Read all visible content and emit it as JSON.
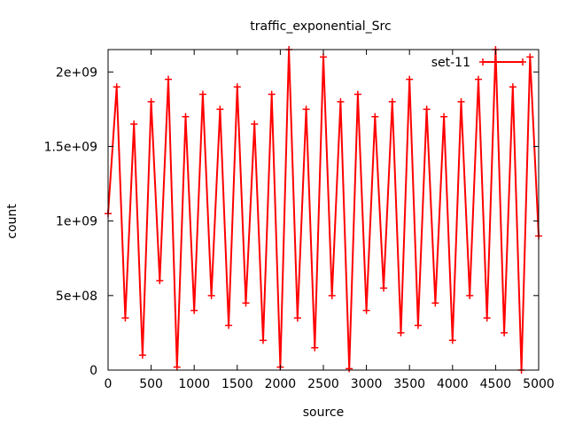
{
  "chart_data": {
    "type": "line",
    "title": "traffic_exponential_Src",
    "xlabel": "source",
    "ylabel": "count",
    "xlim": [
      0,
      5000
    ],
    "ylim": [
      0,
      2150000000
    ],
    "x_ticks": [
      0,
      500,
      1000,
      1500,
      2000,
      2500,
      3000,
      3500,
      4000,
      4500,
      5000
    ],
    "x_tick_labels": [
      "0",
      "500",
      "1000",
      "1500",
      "2000",
      "2500",
      "3000",
      "3500",
      "4000",
      "4500",
      "5000"
    ],
    "y_ticks": [
      0,
      500000000,
      1000000000,
      1500000000,
      2000000000
    ],
    "y_tick_labels": [
      "0",
      "5e+08",
      "1e+09",
      "1.5e+09",
      "2e+09"
    ],
    "grid": false,
    "legend_position": "top-right",
    "series": [
      {
        "name": "set-11",
        "color": "#ff0000",
        "marker": "plus",
        "x": [
          0,
          100,
          200,
          300,
          400,
          500,
          600,
          700,
          800,
          900,
          1000,
          1100,
          1200,
          1300,
          1400,
          1500,
          1600,
          1700,
          1800,
          1900,
          2000,
          2100,
          2200,
          2300,
          2400,
          2500,
          2600,
          2700,
          2800,
          2900,
          3000,
          3100,
          3200,
          3300,
          3400,
          3500,
          3600,
          3700,
          3800,
          3900,
          4000,
          4100,
          4200,
          4300,
          4400,
          4500,
          4600,
          4700,
          4800,
          4900,
          5000
        ],
        "values": [
          1050000000,
          1900000000,
          350000000,
          1650000000,
          100000000,
          1800000000,
          600000000,
          1950000000,
          20000000,
          1700000000,
          400000000,
          1850000000,
          500000000,
          1750000000,
          300000000,
          1900000000,
          450000000,
          1650000000,
          200000000,
          1850000000,
          20000000,
          2150000000,
          350000000,
          1750000000,
          150000000,
          2100000000,
          500000000,
          1800000000,
          10000000,
          1850000000,
          400000000,
          1700000000,
          550000000,
          1800000000,
          250000000,
          1950000000,
          300000000,
          1750000000,
          450000000,
          1700000000,
          200000000,
          1800000000,
          500000000,
          1950000000,
          350000000,
          2150000000,
          250000000,
          1900000000,
          0,
          2100000000,
          900000000
        ]
      }
    ]
  }
}
